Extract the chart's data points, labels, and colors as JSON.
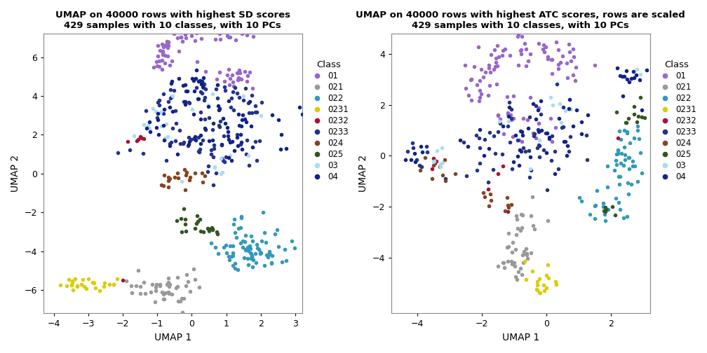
{
  "title1": "UMAP on 40000 rows with highest SD scores\n429 samples with 10 classes, with 10 PCs",
  "title2": "UMAP on 40000 rows with highest ATC scores, rows are scaled\n429 samples with 10 classes, with 10 PCs",
  "xlabel": "UMAP 1",
  "ylabel": "UMAP 2",
  "classes": [
    "01",
    "021",
    "022",
    "0231",
    "0232",
    "0233",
    "024",
    "025",
    "03",
    "04"
  ],
  "colors": {
    "01": "#9966CC",
    "021": "#999999",
    "022": "#3399BB",
    "0231": "#DDCC00",
    "0232": "#AA1133",
    "0233": "#223388",
    "024": "#884422",
    "025": "#335522",
    "03": "#AADDEE",
    "04": "#112288"
  },
  "xlim1": [
    -4.3,
    3.2
  ],
  "ylim1": [
    -7.2,
    7.2
  ],
  "xlim2": [
    -4.8,
    3.2
  ],
  "ylim2": [
    -6.2,
    4.8
  ],
  "xticks1": [
    -4,
    -3,
    -2,
    -1,
    0,
    1,
    2,
    3
  ],
  "yticks1": [
    -6,
    -4,
    -2,
    0,
    2,
    4,
    6
  ],
  "xticks2": [
    -4,
    -2,
    0,
    2
  ],
  "yticks2": [
    -4,
    -2,
    0,
    2,
    4
  ],
  "point_size": 16
}
